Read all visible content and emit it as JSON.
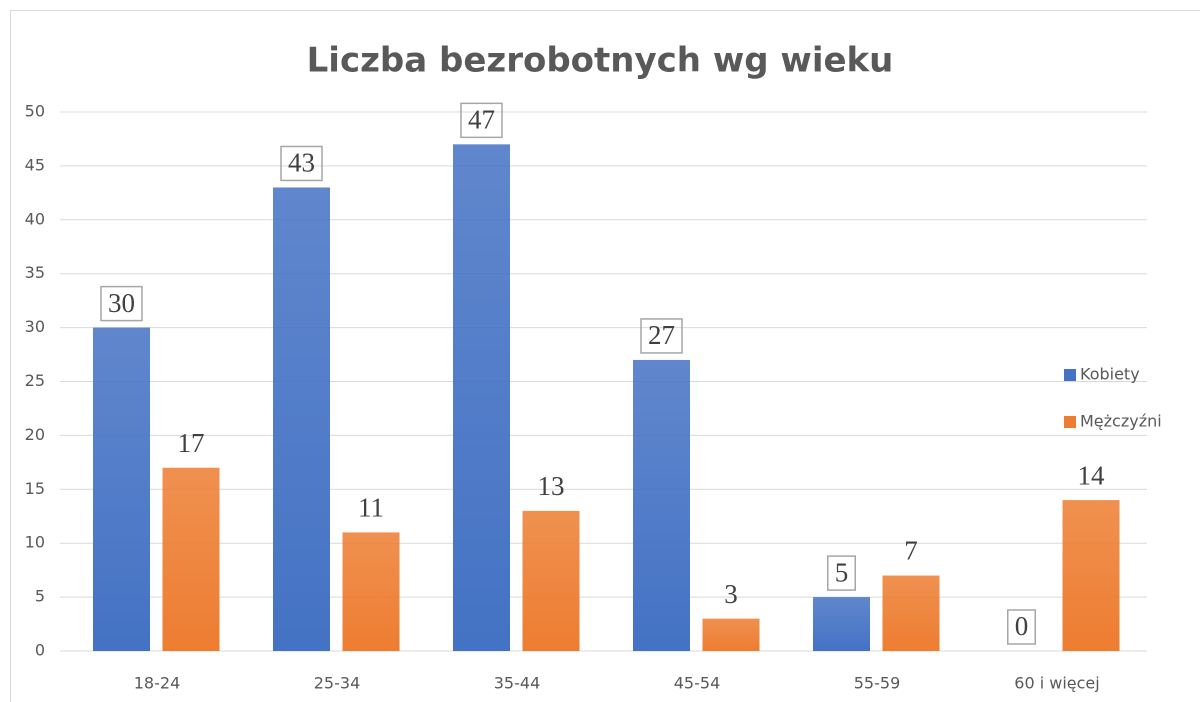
{
  "chart_data": {
    "type": "bar",
    "title": "Liczba bezrobotnych wg wieku",
    "categories": [
      "18-24",
      "25-34",
      "35-44",
      "45-54",
      "55-59",
      "60 i więcej"
    ],
    "series": [
      {
        "name": "Kobiety",
        "color": "#4472c4",
        "values": [
          30,
          43,
          47,
          27,
          5,
          0
        ],
        "boxed_labels": true
      },
      {
        "name": "Mężczyźni",
        "color": "#ed7d31",
        "values": [
          17,
          11,
          13,
          3,
          7,
          14
        ],
        "boxed_labels": false
      }
    ],
    "ylim": [
      0,
      50
    ],
    "yticks": [
      0,
      5,
      10,
      15,
      20,
      25,
      30,
      35,
      40,
      45,
      50
    ],
    "grid": true,
    "legend": "right"
  }
}
